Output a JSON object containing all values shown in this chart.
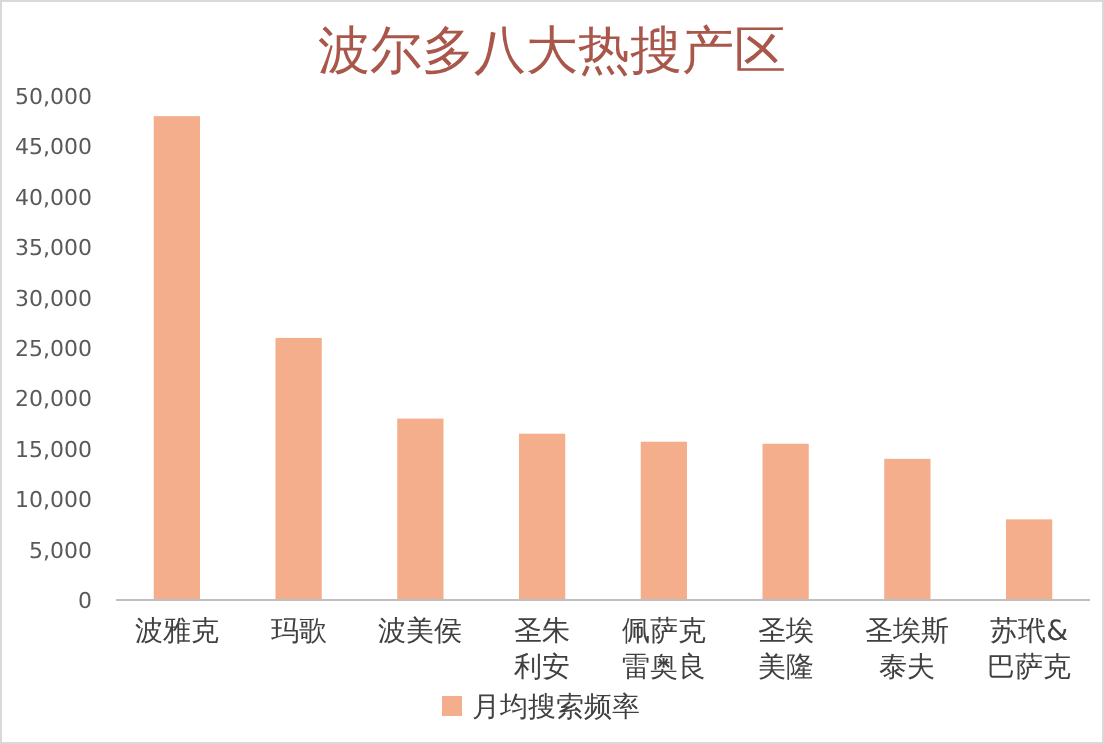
{
  "chart_data": {
    "type": "bar",
    "title": "波尔多八大热搜产区",
    "categories": [
      "波雅克",
      "玛歌",
      "波美侯",
      "圣朱利安",
      "佩萨克雷奥良",
      "圣埃美隆",
      "圣埃斯泰夫",
      "苏玳&巴萨克"
    ],
    "series": [
      {
        "name": "月均搜索频率",
        "color": "#f4ae8c",
        "values": [
          48000,
          26000,
          18000,
          16500,
          15700,
          15500,
          14000,
          8000
        ]
      }
    ],
    "ylim": [
      0,
      50000
    ],
    "yticks": [
      {
        "value": 0,
        "label": "0"
      },
      {
        "value": 5000,
        "label": "5,000"
      },
      {
        "value": 10000,
        "label": "10,000"
      },
      {
        "value": 15000,
        "label": "15,000"
      },
      {
        "value": 20000,
        "label": "20,000"
      },
      {
        "value": 25000,
        "label": "25,000"
      },
      {
        "value": 30000,
        "label": "30,000"
      },
      {
        "value": 35000,
        "label": "35,000"
      },
      {
        "value": 40000,
        "label": "40,000"
      },
      {
        "value": 45000,
        "label": "45,000"
      },
      {
        "value": 50000,
        "label": "50,000"
      }
    ],
    "legend": "bottom"
  }
}
